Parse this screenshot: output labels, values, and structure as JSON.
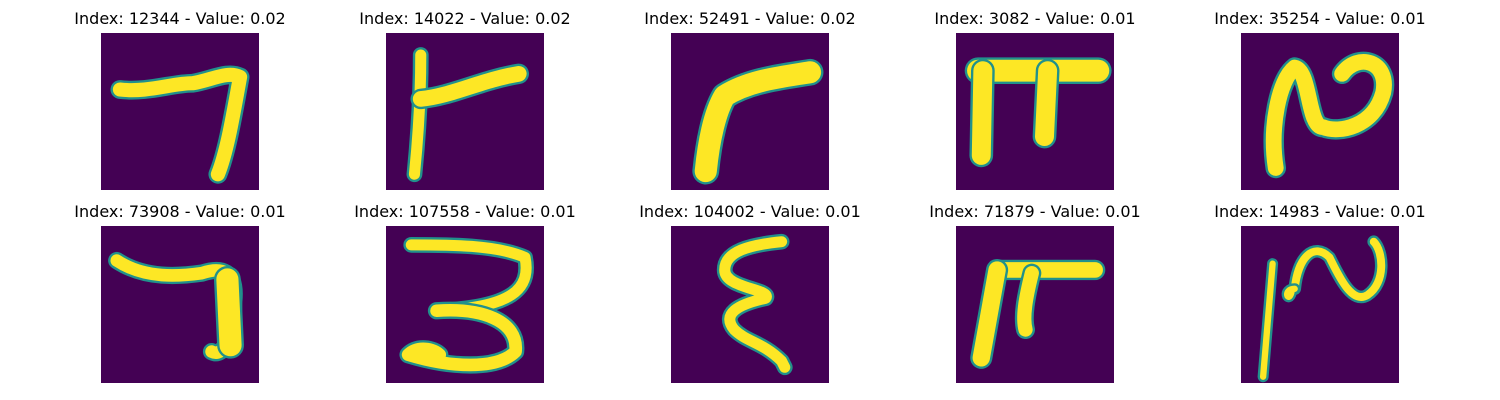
{
  "colors": {
    "background": "#440154",
    "stroke": "#fde725",
    "edge": "#21918c"
  },
  "tiles": [
    {
      "title": "Index: 12344 - Value: 0.02",
      "glyph": "hook-seven"
    },
    {
      "title": "Index: 14022 - Value: 0.02",
      "glyph": "branch-stroke"
    },
    {
      "title": "Index: 52491 - Value: 0.02",
      "glyph": "thick-corner"
    },
    {
      "title": "Index: 3082 - Value: 0.01",
      "glyph": "pi-shape"
    },
    {
      "title": "Index: 35254 - Value: 0.01",
      "glyph": "wave-loop"
    },
    {
      "title": "Index: 73908 - Value: 0.01",
      "glyph": "hook-seven-heavy"
    },
    {
      "title": "Index: 107558 - Value: 0.01",
      "glyph": "three-shape"
    },
    {
      "title": "Index: 104002 - Value: 0.01",
      "glyph": "epsilon-shape"
    },
    {
      "title": "Index: 71879 - Value: 0.01",
      "glyph": "pi-slanted"
    },
    {
      "title": "Index: 14983 - Value: 0.01",
      "glyph": "wave-thin"
    }
  ]
}
